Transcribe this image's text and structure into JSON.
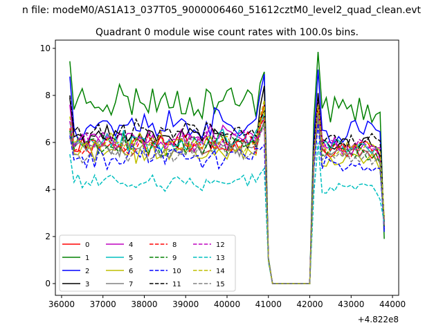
{
  "figure": {
    "suptitle": "n file: modeM0/AS1A13_037T05_9000006460_51612cztM0_level2_quad_clean.evt"
  },
  "chart_data": {
    "type": "line",
    "title": "Quadrant 0 module wise count rates with 100.0s bins.",
    "xlabel": "",
    "ylabel": "",
    "offset_label": "+4.822e8",
    "xlim": [
      35850,
      44150
    ],
    "ylim": [
      -0.5,
      10.35
    ],
    "xticks": [
      36000,
      37000,
      38000,
      39000,
      40000,
      41000,
      42000,
      43000,
      44000
    ],
    "xtick_labels": [
      "36000",
      "37000",
      "38000",
      "39000",
      "40000",
      "41000",
      "42000",
      "43000",
      "44000"
    ],
    "yticks": [
      0,
      2,
      4,
      6,
      8,
      10
    ],
    "ytick_labels": [
      "0",
      "2",
      "4",
      "6",
      "8",
      "10"
    ],
    "grid": false,
    "legend": {
      "placement": "lower-left",
      "ncol": 4
    },
    "segments": [
      {
        "start": 36200,
        "end": 41000,
        "step": 100
      },
      {
        "start": 41100,
        "end": 42000,
        "step": 100,
        "const": 0
      },
      {
        "start": 42100,
        "end": 43800,
        "step": 100
      }
    ],
    "series": [
      {
        "name": "0",
        "color": "#ff0000",
        "dash": "solid",
        "base": 5.9,
        "amp": 0.35,
        "seed": 11,
        "start": 6.2,
        "peak": 7.6,
        "pre_gap": 1.0,
        "post": 7.0,
        "last": 2.5
      },
      {
        "name": "1",
        "color": "#008000",
        "dash": "solid",
        "base": 7.8,
        "amp": 0.6,
        "seed": 23,
        "start": 9.45,
        "peak": 9.0,
        "pre_gap": 1.1,
        "post": 9.85,
        "last": 1.9
      },
      {
        "name": "2",
        "color": "#0000ff",
        "dash": "solid",
        "base": 6.8,
        "amp": 0.55,
        "seed": 37,
        "start": 8.8,
        "peak": 8.9,
        "pre_gap": 1.0,
        "post": 9.1,
        "last": 2.2
      },
      {
        "name": "3",
        "color": "#000000",
        "dash": "solid",
        "base": 6.2,
        "amp": 0.35,
        "seed": 41,
        "start": 7.9,
        "peak": 8.4,
        "pre_gap": 1.0,
        "post": 8.1,
        "last": 2.6
      },
      {
        "name": "4",
        "color": "#bf00bf",
        "dash": "solid",
        "base": 6.3,
        "amp": 0.4,
        "seed": 53,
        "start": 7.6,
        "peak": 7.0,
        "pre_gap": 1.0,
        "post": 7.8,
        "last": 2.4
      },
      {
        "name": "5",
        "color": "#00bfbf",
        "dash": "solid",
        "base": 6.1,
        "amp": 0.35,
        "seed": 67,
        "start": 6.9,
        "peak": 7.2,
        "pre_gap": 1.0,
        "post": 7.3,
        "last": 2.6
      },
      {
        "name": "6",
        "color": "#bfbf00",
        "dash": "solid",
        "base": 5.6,
        "amp": 0.35,
        "seed": 71,
        "start": 6.5,
        "peak": 7.5,
        "pre_gap": 1.0,
        "post": 7.0,
        "last": 2.8
      },
      {
        "name": "7",
        "color": "#808080",
        "dash": "solid",
        "base": 5.8,
        "amp": 0.3,
        "seed": 83,
        "start": 6.2,
        "peak": 6.9,
        "pre_gap": 1.0,
        "post": 7.1,
        "last": 2.5
      },
      {
        "name": "8",
        "color": "#ff0000",
        "dash": "dashed",
        "base": 6.0,
        "amp": 0.35,
        "seed": 97,
        "start": 6.6,
        "peak": 7.1,
        "pre_gap": 1.0,
        "post": 7.5,
        "last": 2.7
      },
      {
        "name": "9",
        "color": "#008000",
        "dash": "dashed",
        "base": 5.9,
        "amp": 0.35,
        "seed": 101,
        "start": 6.5,
        "peak": 6.8,
        "pre_gap": 1.0,
        "post": 7.2,
        "last": 2.4
      },
      {
        "name": "10",
        "color": "#0000ff",
        "dash": "dashed",
        "base": 5.4,
        "amp": 0.35,
        "seed": 113,
        "start": 6.3,
        "peak": 5.9,
        "pre_gap": 1.0,
        "post": 6.8,
        "last": 2.3
      },
      {
        "name": "11",
        "color": "#000000",
        "dash": "dashed",
        "base": 6.5,
        "amp": 0.4,
        "seed": 127,
        "start": 8.0,
        "peak": 7.3,
        "pre_gap": 1.0,
        "post": 7.9,
        "last": 2.6
      },
      {
        "name": "12",
        "color": "#bf00bf",
        "dash": "dashed",
        "base": 6.1,
        "amp": 0.35,
        "seed": 131,
        "start": 6.9,
        "peak": 6.6,
        "pre_gap": 1.0,
        "post": 7.2,
        "last": 2.5
      },
      {
        "name": "13",
        "color": "#00bfbf",
        "dash": "dashed",
        "base": 4.3,
        "amp": 0.25,
        "seed": 139,
        "start": 5.5,
        "peak": 4.9,
        "pre_gap": 0.9,
        "post": 6.0,
        "last": 2.6
      },
      {
        "name": "14",
        "color": "#bfbf00",
        "dash": "dashed",
        "base": 6.0,
        "amp": 0.4,
        "seed": 149,
        "start": 7.1,
        "peak": 7.8,
        "pre_gap": 1.0,
        "post": 7.6,
        "last": 2.8
      },
      {
        "name": "15",
        "color": "#808080",
        "dash": "dashed",
        "base": 5.6,
        "amp": 0.3,
        "seed": 157,
        "start": 6.4,
        "peak": 6.8,
        "pre_gap": 1.0,
        "post": 7.2,
        "last": 2.5
      }
    ]
  }
}
